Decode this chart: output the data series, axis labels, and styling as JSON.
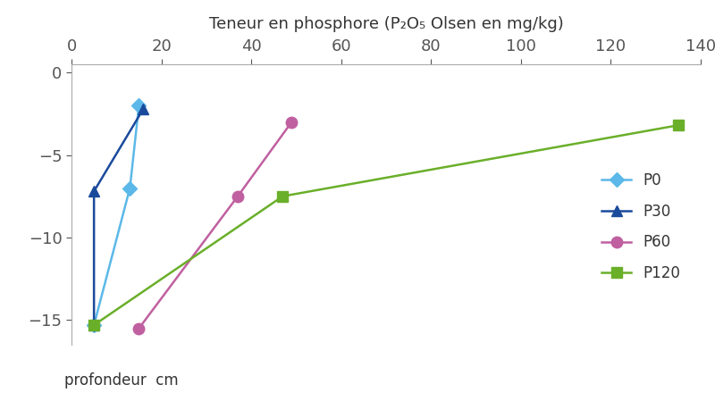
{
  "title": "Teneur en phosphore (P₂O₅ Olsen en mg/kg)",
  "ylabel": "profondeur  cm",
  "xlim": [
    0,
    140
  ],
  "ylim": [
    -16.5,
    0.5
  ],
  "xticks": [
    0,
    20,
    40,
    60,
    80,
    100,
    120,
    140
  ],
  "yticks": [
    0,
    -5,
    -10,
    -15
  ],
  "series": [
    {
      "label": "P0",
      "color": "#5BB8E8",
      "marker": "D",
      "markersize": 8,
      "linewidth": 1.8,
      "x": [
        15,
        13,
        5
      ],
      "y": [
        -2,
        -7,
        -15.3
      ]
    },
    {
      "label": "P30",
      "color": "#1A4A9C",
      "marker": "^",
      "markersize": 9,
      "linewidth": 1.8,
      "x": [
        16,
        5,
        5
      ],
      "y": [
        -2.2,
        -7.2,
        -15.3
      ]
    },
    {
      "label": "P60",
      "color": "#C060A0",
      "marker": "o",
      "markersize": 9,
      "linewidth": 1.8,
      "x": [
        49,
        37,
        15
      ],
      "y": [
        -3,
        -7.5,
        -15.5
      ]
    },
    {
      "label": "P120",
      "color": "#6AAF2A",
      "marker": "s",
      "markersize": 9,
      "linewidth": 1.8,
      "x": [
        135,
        47,
        5
      ],
      "y": [
        -3.2,
        -7.5,
        -15.3
      ]
    }
  ],
  "background_color": "#ffffff",
  "title_fontsize": 13,
  "tick_fontsize": 13,
  "legend_fontsize": 12,
  "ylabel_fontsize": 12,
  "tick_color": "#555555",
  "text_color": "#333333"
}
